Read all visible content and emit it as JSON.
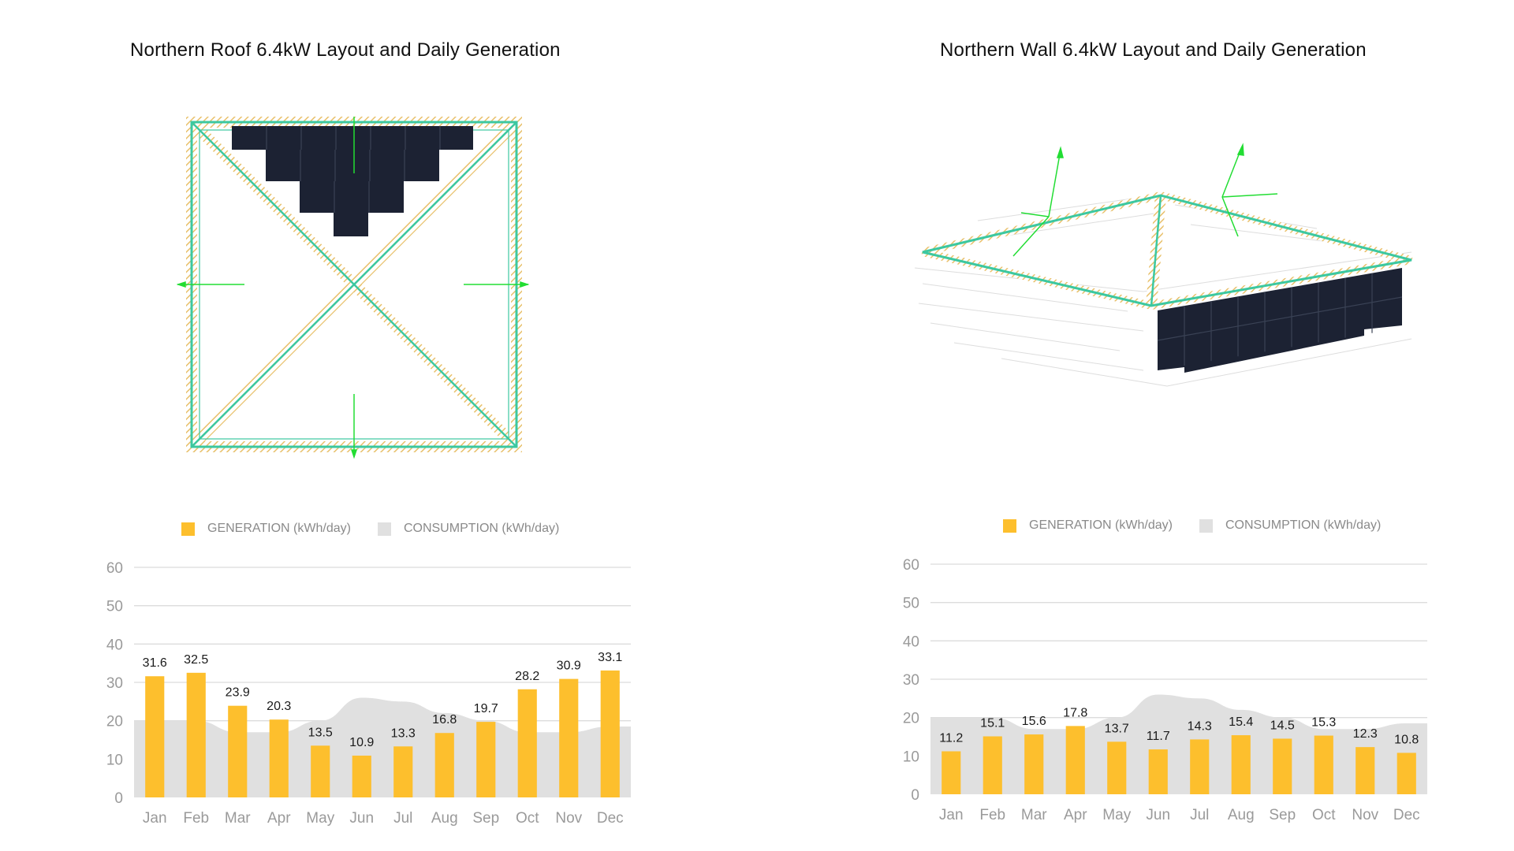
{
  "colors": {
    "generation": "#FDBF2D",
    "consumption": "#E0E0E0",
    "outline": "#3CC8A0",
    "panel": "#1C2233",
    "hatch": "#E8C06A",
    "arrow": "#22DD33"
  },
  "legend": {
    "generation_label": "GENERATION (kWh/day)",
    "consumption_label": "CONSUMPTION (kWh/day)"
  },
  "panels": [
    {
      "title": "Northern Roof 6.4kW Layout and Daily Generation"
    },
    {
      "title": "Northern Wall 6.4kW Layout and Daily Generation"
    }
  ],
  "chart_data": [
    {
      "type": "bar",
      "title": "Northern Roof 6.4kW Layout and Daily Generation",
      "categories": [
        "Jan",
        "Feb",
        "Mar",
        "Apr",
        "May",
        "Jun",
        "Jul",
        "Aug",
        "Sep",
        "Oct",
        "Nov",
        "Dec"
      ],
      "yticks": [
        0,
        10,
        20,
        30,
        40,
        50,
        60
      ],
      "ylim": [
        0,
        60
      ],
      "legend_position": "top",
      "series": [
        {
          "name": "GENERATION (kWh/day)",
          "type": "bar",
          "values": [
            31.6,
            32.5,
            23.9,
            20.3,
            13.5,
            10.9,
            13.3,
            16.8,
            19.7,
            28.2,
            30.9,
            33.1
          ]
        },
        {
          "name": "CONSUMPTION (kWh/day)",
          "type": "area",
          "values": [
            20,
            20,
            17,
            17,
            20,
            26,
            25,
            22,
            20,
            17,
            17,
            18.5
          ]
        }
      ]
    },
    {
      "type": "bar",
      "title": "Northern Wall 6.4kW Layout and Daily Generation",
      "categories": [
        "Jan",
        "Feb",
        "Mar",
        "Apr",
        "May",
        "Jun",
        "Jul",
        "Aug",
        "Sep",
        "Oct",
        "Nov",
        "Dec"
      ],
      "yticks": [
        0,
        10,
        20,
        30,
        40,
        50,
        60
      ],
      "ylim": [
        0,
        60
      ],
      "legend_position": "top",
      "series": [
        {
          "name": "GENERATION (kWh/day)",
          "type": "bar",
          "values": [
            11.2,
            15.1,
            15.6,
            17.8,
            13.7,
            11.7,
            14.3,
            15.4,
            14.5,
            15.3,
            12.3,
            10.8
          ]
        },
        {
          "name": "CONSUMPTION (kWh/day)",
          "type": "area",
          "values": [
            20,
            20,
            17,
            17,
            20,
            26,
            25,
            22,
            20,
            17,
            17,
            18.5
          ]
        }
      ]
    }
  ]
}
